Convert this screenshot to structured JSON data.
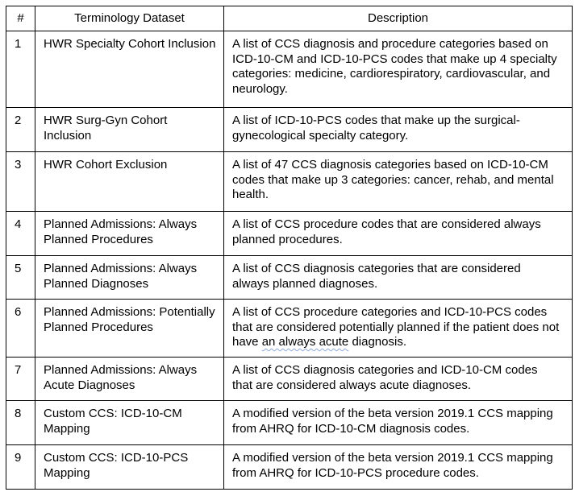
{
  "page": {
    "background_color": "#ffffff",
    "border_color": "#000000",
    "text_color": "#000000",
    "grammar_underline_color": "#8ea9d9"
  },
  "table": {
    "headers": {
      "num": "#",
      "dataset": "Terminology Dataset",
      "description": "Description"
    },
    "rows": [
      {
        "num": "1",
        "dataset": "HWR Specialty Cohort Inclusion",
        "description": "A list of CCS diagnosis and procedure categories based on ICD-10-CM and ICD-10-PCS codes that make up 4 specialty categories: medicine, cardiorespiratory, cardiovascular, and neurology."
      },
      {
        "num": "2",
        "dataset": "HWR Surg-Gyn Cohort Inclusion",
        "description": "A list of ICD-10-PCS codes that make up the surgical-gynecological specialty category."
      },
      {
        "num": "3",
        "dataset": "HWR Cohort Exclusion",
        "description": "A list of 47 CCS diagnosis categories based on ICD-10-CM codes that make up 3 categories: cancer, rehab, and mental health."
      },
      {
        "num": "4",
        "dataset": "Planned Admissions: Always Planned Procedures",
        "description": "A list of CCS procedure codes that are considered always planned procedures."
      },
      {
        "num": "5",
        "dataset": "Planned Admissions: Always Planned Diagnoses",
        "description": "A list of CCS diagnosis categories that are considered always planned diagnoses."
      },
      {
        "num": "6",
        "dataset": "Planned Admissions: Potentially Planned Procedures",
        "desc_pre": "A list of CCS procedure categories and ICD-10-PCS codes that are considered potentially planned if the patient does not have ",
        "desc_wavy": "an always acute",
        "desc_post": " diagnosis."
      },
      {
        "num": "7",
        "dataset": "Planned Admissions: Always Acute Diagnoses",
        "description": "A list of CCS diagnosis categories and ICD-10-CM codes that are considered always acute diagnoses."
      },
      {
        "num": "8",
        "dataset": "Custom CCS: ICD-10-CM Mapping",
        "description": "A modified version of the beta version 2019.1 CCS mapping from AHRQ for ICD-10-CM diagnosis codes."
      },
      {
        "num": "9",
        "dataset": "Custom CCS: ICD-10-PCS Mapping",
        "description": "A modified version of the beta version 2019.1 CCS mapping from AHRQ for ICD-10-PCS procedure codes."
      }
    ]
  }
}
